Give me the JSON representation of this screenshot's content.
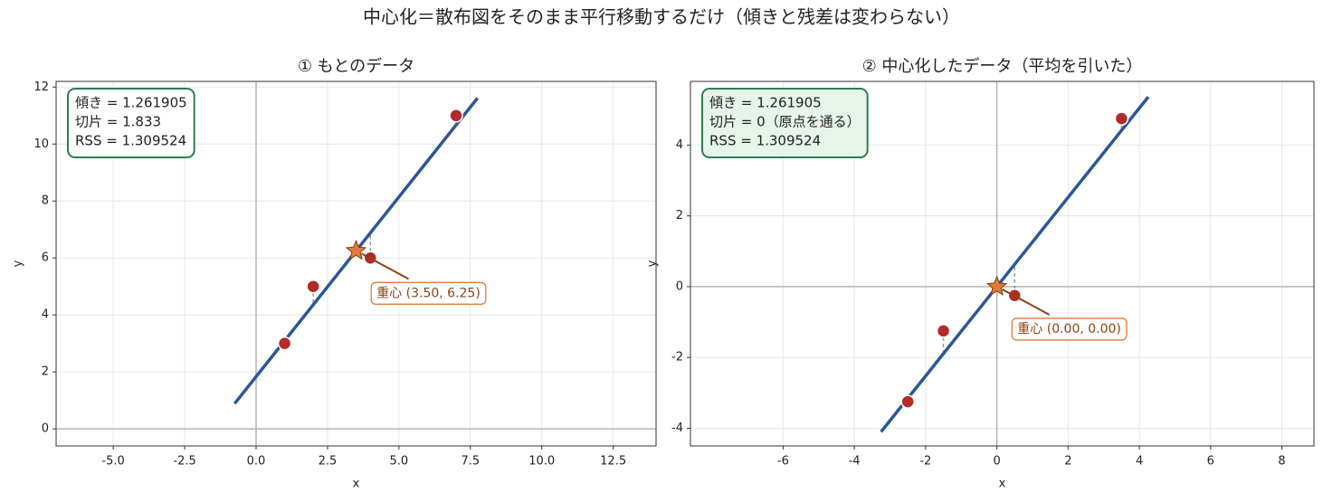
{
  "title": "中心化＝散布図をそのまま平行移動するだけ（傾きと残差は変わらない）",
  "chart_data": [
    {
      "type": "scatter",
      "title": "① もとのデータ",
      "xlabel": "x",
      "ylabel": "y",
      "x": [
        1,
        2,
        4,
        7
      ],
      "values": [
        3,
        5,
        6,
        11
      ],
      "color": "#b22a2a",
      "fit_line": {
        "x": [
          -0.75,
          7.75
        ],
        "y": [
          0.887,
          11.613
        ],
        "color": "#2b5797"
      },
      "centroid": {
        "x": 3.5,
        "y": 6.25,
        "color": "#e07b39"
      },
      "annotation": "重心 (3.50, 6.25)",
      "info": [
        "傾き = 1.261905",
        "切片 = 1.833",
        "RSS = 1.309524"
      ],
      "info_fill": "#ffffff",
      "xlim": [
        -7,
        14
      ],
      "ylim": [
        -0.6,
        12.2
      ],
      "xticks": [
        {
          "value": -5,
          "label": "-5.0"
        },
        {
          "value": -2.5,
          "label": "-2.5"
        },
        {
          "value": 0,
          "label": "0.0"
        },
        {
          "value": 2.5,
          "label": "2.5"
        },
        {
          "value": 5,
          "label": "5.0"
        },
        {
          "value": 7.5,
          "label": "7.5"
        },
        {
          "value": 10,
          "label": "10.0"
        },
        {
          "value": 12.5,
          "label": "12.5"
        }
      ],
      "yticks": [
        0,
        2,
        4,
        6,
        8,
        10,
        12
      ],
      "grid": true
    },
    {
      "type": "scatter",
      "title": "② 中心化したデータ（平均を引いた）",
      "xlabel": "x",
      "ylabel": "y",
      "x": [
        -2.5,
        -1.5,
        0.5,
        3.5
      ],
      "values": [
        -3.25,
        -1.25,
        -0.25,
        4.75
      ],
      "color": "#b22a2a",
      "fit_line": {
        "x": [
          -3.25,
          4.25
        ],
        "y": [
          -4.101,
          5.363
        ],
        "color": "#2b5797"
      },
      "centroid": {
        "x": 0,
        "y": 0,
        "color": "#e07b39"
      },
      "annotation": "重心 (0.00, 0.00)",
      "info": [
        "傾き = 1.261905",
        "切片 = 0（原点を通る）",
        "RSS = 1.309524"
      ],
      "info_fill": "#e6f4ea",
      "xlim": [
        -8.6,
        8.9
      ],
      "ylim": [
        -4.5,
        5.8
      ],
      "xticks": [
        -6,
        -4,
        -2,
        0,
        2,
        4,
        6,
        8
      ],
      "yticks": [
        -4,
        -2,
        0,
        2,
        4
      ],
      "grid": true
    }
  ]
}
